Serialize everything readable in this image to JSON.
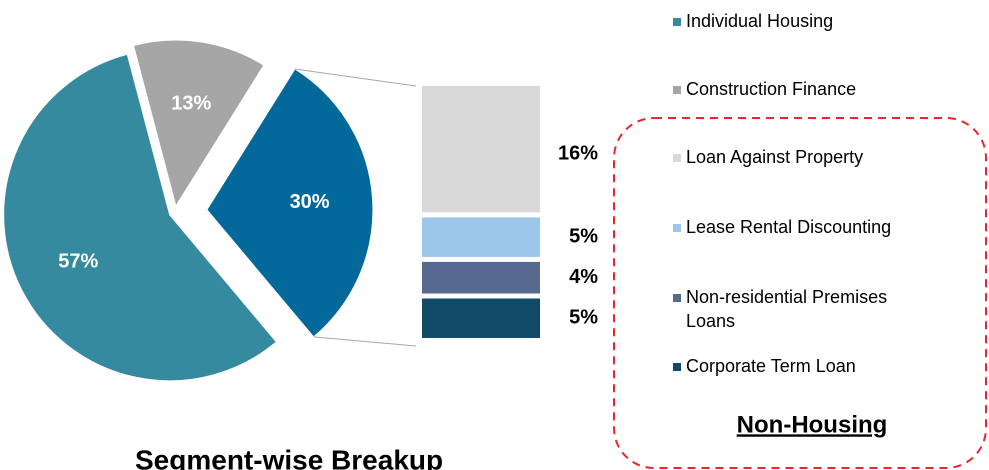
{
  "chart_data": {
    "type": "pie-of-bar",
    "pie": {
      "categories": [
        "Individual Housing",
        "Construction Finance",
        null
      ],
      "values": [
        57,
        13,
        30
      ],
      "value_labels": [
        "57%",
        "13%",
        "30%"
      ],
      "colors": [
        "#358a9f",
        "#a6a6a6",
        "#03689a"
      ],
      "exploded": 2
    },
    "bar": {
      "categories": [
        "Loan Against Property",
        "Lease Rental Discounting",
        "Non-residential Premises Loans",
        "Corporate Term Loan"
      ],
      "values": [
        16,
        5,
        4,
        5
      ],
      "value_labels": [
        "16%",
        "5%",
        "4%",
        "5%"
      ],
      "colors": [
        "#d9d9d9",
        "#9dc7ea",
        "#58698f",
        "#0f4a67"
      ]
    },
    "group_label": "Non-Housing",
    "footer": "Segment-wise Breakup"
  }
}
